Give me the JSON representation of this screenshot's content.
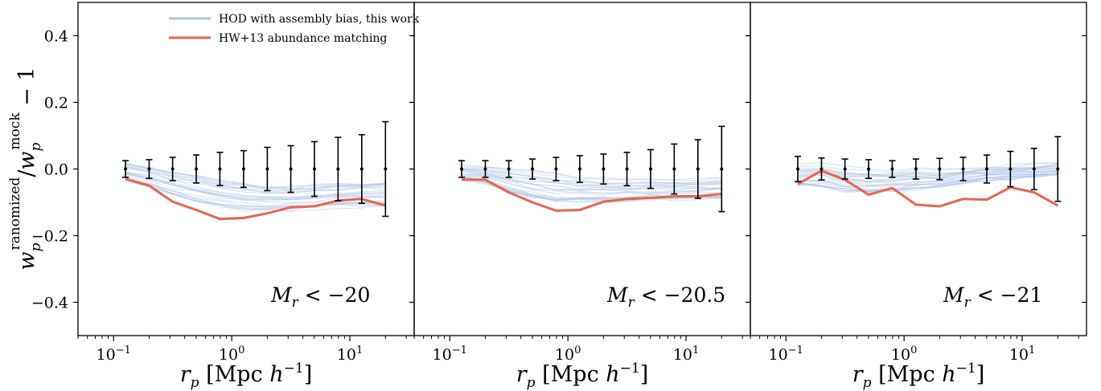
{
  "chart_data": {
    "type": "line",
    "x_scale": "log",
    "xlim": [
      0.05,
      35
    ],
    "ylim": [
      -0.5,
      0.5
    ],
    "y_ticks": [
      -0.4,
      -0.2,
      0.0,
      0.2,
      0.4
    ],
    "y_tick_labels": [
      "−0.4",
      "−0.2",
      "0.0",
      "0.2",
      "0.4"
    ],
    "x_ticks": [
      0.1,
      1,
      10
    ],
    "x_tick_labels": [
      {
        "base": "10",
        "exp": "−1"
      },
      {
        "base": "10",
        "exp": "0"
      },
      {
        "base": "10",
        "exp": "1"
      }
    ],
    "ylabel": {
      "base": "w",
      "sub": "p",
      "sup": "ranomized",
      "slash": "/",
      "base2": "w",
      "sub2": "p",
      "sup2": "mock",
      "tail": " − 1"
    },
    "xlabel": {
      "var": "r",
      "sub": "p",
      "text": " [Mpc ",
      "h": "h",
      "exp": "−1",
      "close": "]"
    },
    "legend": {
      "placement": "top-left",
      "entries": [
        {
          "label": "HOD with assembly bias, this work",
          "color": "#b0c4e4"
        },
        {
          "label": "HW+13 abundance matching",
          "color": "#e8654f"
        }
      ]
    },
    "colors": {
      "hod": "#b0c4e4",
      "am": "#e8654f",
      "errorbar": "#000000"
    },
    "x": [
      0.126,
      0.2,
      0.316,
      0.501,
      0.794,
      1.26,
      2.0,
      3.16,
      5.01,
      7.94,
      12.6,
      20.0
    ],
    "panels": [
      {
        "annotation": {
          "M": "M",
          "sub": "r",
          "text": " < −20"
        },
        "am_values": [
          -0.03,
          -0.05,
          -0.098,
          -0.123,
          -0.15,
          -0.147,
          -0.133,
          -0.115,
          -0.112,
          -0.095,
          -0.09,
          -0.11
        ],
        "mock_mean": [
          0.0,
          0.0,
          0.0,
          0.0,
          0.0,
          0.0,
          0.0,
          0.0,
          0.0,
          0.0,
          0.0,
          0.0
        ],
        "mock_err": [
          0.025,
          0.028,
          0.035,
          0.042,
          0.05,
          0.055,
          0.065,
          0.07,
          0.082,
          0.095,
          0.103,
          0.142
        ],
        "hod_mean": [
          -0.01,
          -0.025,
          -0.045,
          -0.06,
          -0.075,
          -0.085,
          -0.09,
          -0.09,
          -0.085,
          -0.08,
          -0.078,
          -0.075
        ],
        "hod_spread": [
          0.025,
          0.03,
          0.035,
          0.04,
          0.04,
          0.04,
          0.035,
          0.035,
          0.035,
          0.035,
          0.035,
          0.035
        ]
      },
      {
        "annotation": {
          "M": "M",
          "sub": "r",
          "text": " < −20.5"
        },
        "am_values": [
          -0.032,
          -0.032,
          -0.07,
          -0.1,
          -0.125,
          -0.123,
          -0.098,
          -0.09,
          -0.087,
          -0.082,
          -0.082,
          -0.075
        ],
        "mock_mean": [
          0.0,
          0.0,
          0.0,
          0.0,
          0.0,
          0.0,
          0.0,
          0.0,
          0.0,
          0.0,
          0.0,
          0.0
        ],
        "mock_err": [
          0.025,
          0.025,
          0.025,
          0.03,
          0.035,
          0.04,
          0.045,
          0.05,
          0.058,
          0.075,
          0.088,
          0.128
        ],
        "hod_mean": [
          -0.01,
          -0.015,
          -0.03,
          -0.045,
          -0.055,
          -0.06,
          -0.062,
          -0.062,
          -0.06,
          -0.06,
          -0.058,
          -0.055
        ],
        "hod_spread": [
          0.02,
          0.025,
          0.035,
          0.04,
          0.04,
          0.035,
          0.035,
          0.03,
          0.03,
          0.03,
          0.03,
          0.03
        ]
      },
      {
        "annotation": {
          "M": "M",
          "sub": "r",
          "text": " < −21"
        },
        "am_values": [
          -0.045,
          -0.005,
          -0.032,
          -0.077,
          -0.057,
          -0.107,
          -0.112,
          -0.09,
          -0.092,
          -0.055,
          -0.07,
          -0.11
        ],
        "mock_mean": [
          0.0,
          0.0,
          0.0,
          0.0,
          0.0,
          0.0,
          0.0,
          0.0,
          0.0,
          0.0,
          0.0,
          0.0
        ],
        "mock_err": [
          0.038,
          0.033,
          0.03,
          0.028,
          0.025,
          0.03,
          0.032,
          0.035,
          0.042,
          0.053,
          0.062,
          0.097
        ],
        "hod_mean": [
          -0.02,
          -0.02,
          -0.03,
          -0.035,
          -0.035,
          -0.03,
          -0.028,
          -0.02,
          -0.015,
          -0.01,
          -0.005,
          0.0
        ],
        "hod_spread": [
          0.03,
          0.035,
          0.035,
          0.035,
          0.03,
          0.03,
          0.025,
          0.02,
          0.02,
          0.02,
          0.02,
          0.02
        ]
      }
    ]
  }
}
